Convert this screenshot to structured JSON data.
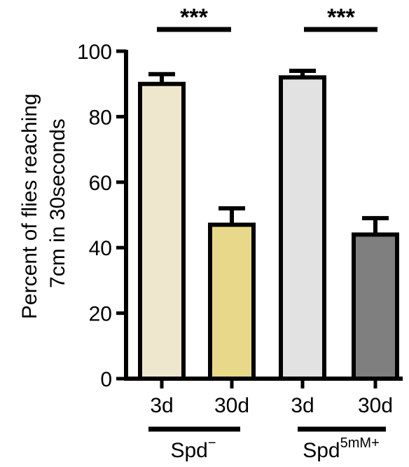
{
  "chart_data": {
    "type": "bar",
    "ylabel_line1": "Percent of flies reaching",
    "ylabel_line2": "7cm in 30seconds",
    "ylim": [
      0,
      100
    ],
    "yticks": [
      "0",
      "20",
      "40",
      "60",
      "80",
      "100"
    ],
    "categories": [
      "3d",
      "30d",
      "3d",
      "30d"
    ],
    "values": [
      90,
      47,
      92,
      44
    ],
    "errors": [
      3,
      5,
      2,
      5
    ],
    "bar_colors": [
      "#efe7cd",
      "#e8d98a",
      "#e2e2e2",
      "#7f7f7f"
    ],
    "groups": [
      {
        "label_main": "Spd",
        "label_sup": "−"
      },
      {
        "label_main": "Spd",
        "label_sup": "5mM+"
      }
    ],
    "significance": [
      "***",
      "***"
    ]
  }
}
